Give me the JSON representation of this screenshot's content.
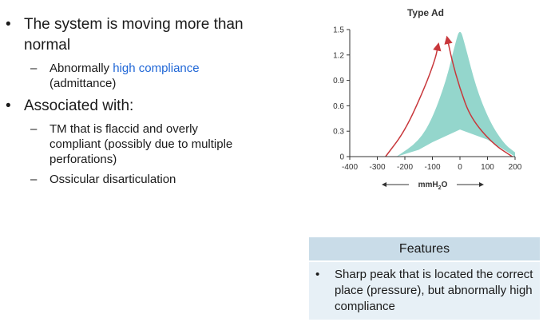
{
  "slide": {
    "bullet1": "The system is moving more than normal",
    "sub1_prefix": "Abnormally ",
    "sub1_highlight": "high compliance",
    "sub1_suffix": " (admittance)",
    "bullet2": "Associated with:",
    "sub2a": "TM that is flaccid and overly compliant (possibly due to multiple perforations)",
    "sub2b": "Ossicular disarticulation",
    "bullet_glyph": "•",
    "dash_glyph": "–"
  },
  "features": {
    "header": "Features",
    "item": "Sharp peak that is located the correct place (pressure), but abnormally high compliance"
  },
  "colors": {
    "fill": "#94d6cc",
    "arrow": "#c8373b",
    "highlight": "#1f66d6",
    "header_bg": "#c9dce8",
    "body_bg": "#e7f0f6"
  },
  "chart_data": {
    "type": "area",
    "title": "Type Ad",
    "xlabel_prefix": "mmH",
    "xlabel_sub": "2",
    "xlabel_suffix": "O",
    "xlim": [
      -400,
      200
    ],
    "ylim": [
      0,
      1.5
    ],
    "x_ticks": [
      "-400",
      "-300",
      "-200",
      "-100",
      "0",
      "100",
      "200"
    ],
    "y_ticks": [
      "0",
      "0.3",
      "0.6",
      "0.9",
      "1.2",
      "1.5"
    ],
    "upper_curve": [
      [
        -230,
        0
      ],
      [
        -150,
        0.18
      ],
      [
        -100,
        0.45
      ],
      [
        -50,
        0.9
      ],
      [
        -20,
        1.3
      ],
      [
        0,
        1.53
      ],
      [
        20,
        1.3
      ],
      [
        60,
        0.8
      ],
      [
        110,
        0.4
      ],
      [
        160,
        0.15
      ],
      [
        200,
        0.05
      ]
    ],
    "lower_curve": [
      [
        -230,
        0
      ],
      [
        -150,
        0.08
      ],
      [
        -100,
        0.17
      ],
      [
        0,
        0.32
      ],
      [
        100,
        0.2
      ],
      [
        160,
        0.08
      ],
      [
        200,
        0.0
      ]
    ],
    "arrow_left": [
      [
        -270,
        0
      ],
      [
        -200,
        0.3
      ],
      [
        -130,
        0.8
      ],
      [
        -90,
        1.15
      ],
      [
        -80,
        1.3
      ]
    ],
    "arrow_right": [
      [
        190,
        0
      ],
      [
        120,
        0.15
      ],
      [
        40,
        0.45
      ],
      [
        0,
        0.8
      ],
      [
        -30,
        1.15
      ],
      [
        -45,
        1.38
      ]
    ]
  }
}
